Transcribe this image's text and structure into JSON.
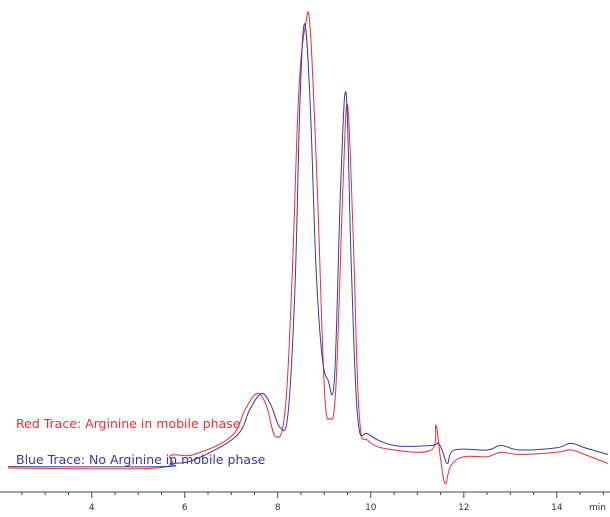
{
  "chart_data": {
    "type": "line",
    "xunit": "min",
    "xlim": [
      2.2,
      15.1
    ],
    "ylim": [
      -0.04,
      1.02
    ],
    "grid": false,
    "legend_placement": "bottom-left",
    "x_ticks": [
      4,
      6,
      8,
      10,
      12,
      14
    ],
    "series": [
      {
        "name": "Red Trace: Arginine in mobile phase",
        "color": "#e8303a",
        "points": [
          [
            2.2,
            0.0
          ],
          [
            5.4,
            0.0
          ],
          [
            5.7,
            0.028
          ],
          [
            6.2,
            0.03
          ],
          [
            7.0,
            0.07
          ],
          [
            7.3,
            0.13
          ],
          [
            7.55,
            0.165
          ],
          [
            7.75,
            0.14
          ],
          [
            7.95,
            0.07
          ],
          [
            8.15,
            0.12
          ],
          [
            8.3,
            0.4
          ],
          [
            8.45,
            0.83
          ],
          [
            8.6,
            0.985
          ],
          [
            8.7,
            0.97
          ],
          [
            8.85,
            0.62
          ],
          [
            9.0,
            0.18
          ],
          [
            9.12,
            0.11
          ],
          [
            9.25,
            0.18
          ],
          [
            9.4,
            0.62
          ],
          [
            9.5,
            0.805
          ],
          [
            9.62,
            0.52
          ],
          [
            9.75,
            0.12
          ],
          [
            9.95,
            0.06
          ],
          [
            10.5,
            0.04
          ],
          [
            11.3,
            0.04
          ],
          [
            11.4,
            0.095
          ],
          [
            11.5,
            0.02
          ],
          [
            11.6,
            -0.035
          ],
          [
            11.72,
            0.005
          ],
          [
            12.0,
            0.025
          ],
          [
            12.5,
            0.025
          ],
          [
            12.8,
            0.035
          ],
          [
            13.2,
            0.03
          ],
          [
            14.0,
            0.035
          ],
          [
            14.3,
            0.04
          ],
          [
            14.6,
            0.03
          ],
          [
            15.1,
            0.01
          ]
        ]
      },
      {
        "name": "Blue Trace: No Arginine in mobile phase",
        "color": "#3a3a9a",
        "points": [
          [
            2.2,
            0.003
          ],
          [
            5.5,
            0.003
          ],
          [
            5.7,
            0.01
          ],
          [
            6.2,
            0.018
          ],
          [
            7.1,
            0.07
          ],
          [
            7.4,
            0.13
          ],
          [
            7.65,
            0.165
          ],
          [
            7.85,
            0.14
          ],
          [
            8.05,
            0.09
          ],
          [
            8.22,
            0.12
          ],
          [
            8.37,
            0.4
          ],
          [
            8.48,
            0.82
          ],
          [
            8.58,
            0.985
          ],
          [
            8.7,
            0.8
          ],
          [
            8.82,
            0.45
          ],
          [
            8.95,
            0.25
          ],
          [
            9.08,
            0.195
          ],
          [
            9.22,
            0.2
          ],
          [
            9.35,
            0.62
          ],
          [
            9.47,
            0.83
          ],
          [
            9.58,
            0.45
          ],
          [
            9.72,
            0.11
          ],
          [
            9.95,
            0.075
          ],
          [
            10.5,
            0.05
          ],
          [
            11.3,
            0.05
          ],
          [
            11.45,
            0.055
          ],
          [
            11.55,
            0.035
          ],
          [
            11.65,
            0.01
          ],
          [
            11.8,
            0.04
          ],
          [
            12.5,
            0.04
          ],
          [
            12.8,
            0.05
          ],
          [
            13.2,
            0.04
          ],
          [
            14.0,
            0.045
          ],
          [
            14.3,
            0.055
          ],
          [
            14.6,
            0.045
          ],
          [
            15.1,
            0.03
          ]
        ]
      }
    ]
  }
}
